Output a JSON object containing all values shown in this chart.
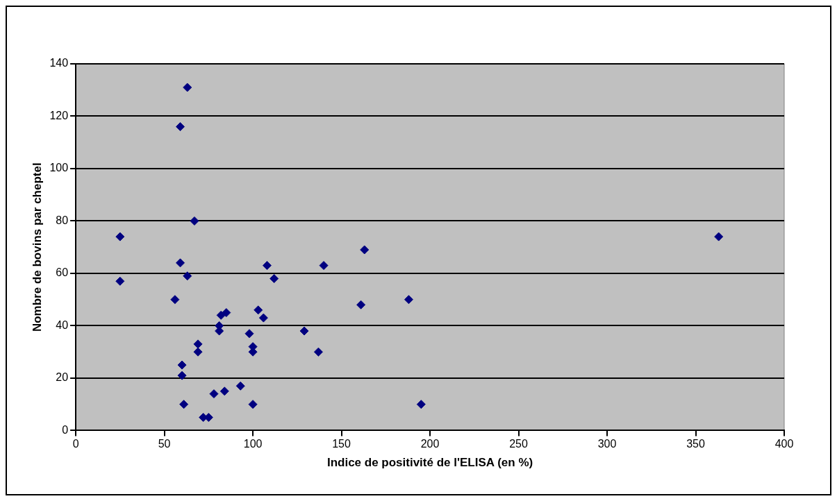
{
  "chart_data": {
    "type": "scatter",
    "xlabel": "Indice de positivité de l'ELISA (en %)",
    "ylabel": "Nombre de bovins par cheptel",
    "x": [
      25,
      25,
      63,
      59,
      67,
      59,
      63,
      56,
      69,
      69,
      60,
      60,
      61,
      72,
      75,
      78,
      84,
      82,
      85,
      81,
      81,
      93,
      98,
      100,
      100,
      100,
      103,
      106,
      108,
      112,
      129,
      137,
      140,
      161,
      163,
      188,
      195,
      363
    ],
    "values": [
      74,
      57,
      131,
      116,
      80,
      64,
      59,
      50,
      33,
      30,
      25,
      21,
      10,
      5,
      5,
      14,
      15,
      44,
      45,
      40,
      38,
      17,
      37,
      32,
      30,
      10,
      46,
      43,
      63,
      58,
      38,
      30,
      63,
      48,
      69,
      50,
      10,
      74
    ],
    "color": "#000080",
    "marker": "diamond",
    "grid": "y",
    "legend": false,
    "xlim": [
      0,
      400
    ],
    "xticks": [
      0,
      50,
      100,
      150,
      200,
      250,
      300,
      350,
      400
    ],
    "ylim": [
      0,
      140
    ],
    "yticks": [
      0,
      20,
      40,
      60,
      80,
      100,
      120,
      140
    ]
  }
}
